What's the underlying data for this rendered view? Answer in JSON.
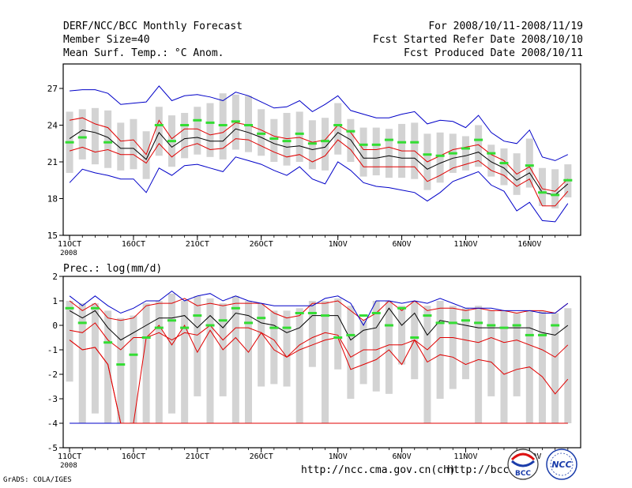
{
  "header": {
    "title": "DERF/NCC/BCC Monthly Forecast",
    "member_size": "Member Size=40",
    "variable": "Mean Surf. Temp.: °C Anom.",
    "period": "For 2008/10/11-2008/11/19",
    "started": "Fcst Started Refer Date 2008/10/10",
    "produced": "Fcst Produced Date 2008/10/11"
  },
  "footer": {
    "grads": "GrADS: COLA/IGES",
    "url1": "http://ncc.cma.gov.cn(ch)",
    "url2": "http://bcc.c",
    "logo1_text": "BCC",
    "logo2_text": "NCC"
  },
  "colors": {
    "mean": "#000000",
    "spread": "#e00000",
    "envelope": "#0000c8",
    "median": "#33dd33",
    "box": "#d3d3d3"
  },
  "chart_data": [
    {
      "type": "line",
      "title": "Mean Surf. Temp.: °C Anom.",
      "ylim": [
        15,
        29
      ],
      "yticks": [
        15,
        18,
        21,
        24,
        27
      ],
      "xlim": [
        0.5,
        41
      ],
      "xtick_labels": [
        {
          "day": 1,
          "label": "11OCT"
        },
        {
          "day": 6,
          "label": "16OCT"
        },
        {
          "day": 11,
          "label": "21OCT"
        },
        {
          "day": 16,
          "label": "26OCT"
        },
        {
          "day": 22,
          "label": "1NOV"
        },
        {
          "day": 27,
          "label": "6NOV"
        },
        {
          "day": 32,
          "label": "11NOV"
        },
        {
          "day": 37,
          "label": "16NOV"
        }
      ],
      "year_label": "2008",
      "days": [
        1,
        2,
        3,
        4,
        5,
        6,
        7,
        8,
        9,
        10,
        11,
        12,
        13,
        14,
        15,
        16,
        17,
        18,
        19,
        20,
        21,
        22,
        23,
        24,
        25,
        26,
        27,
        28,
        29,
        30,
        31,
        32,
        33,
        34,
        35,
        36,
        37,
        38,
        39,
        40
      ],
      "series": [
        {
          "name": "ensemble mean",
          "values": [
            22.9,
            23.6,
            23.4,
            23.0,
            22.1,
            22.1,
            21.2,
            23.4,
            22.2,
            22.9,
            23.0,
            22.7,
            22.7,
            23.7,
            23.4,
            23.0,
            22.5,
            22.2,
            22.3,
            22.0,
            22.2,
            23.4,
            22.8,
            21.3,
            21.3,
            21.5,
            21.3,
            21.3,
            20.4,
            20.9,
            21.3,
            21.5,
            21.8,
            21.0,
            20.5,
            19.5,
            20.1,
            18.5,
            18.3,
            19.2
          ]
        },
        {
          "name": "mean + sd",
          "values": [
            24.4,
            24.6,
            24.1,
            23.8,
            22.7,
            22.8,
            21.6,
            24.4,
            22.9,
            23.7,
            23.7,
            23.2,
            23.4,
            24.2,
            24.0,
            23.6,
            23.1,
            22.9,
            23.0,
            22.6,
            22.8,
            24.0,
            23.4,
            22.0,
            22.0,
            22.2,
            21.9,
            21.9,
            21.0,
            21.5,
            22.0,
            22.2,
            22.4,
            21.6,
            21.1,
            20.0,
            20.6,
            18.8,
            18.6,
            19.6
          ]
        },
        {
          "name": "mean - sd",
          "values": [
            21.9,
            22.2,
            21.8,
            22.0,
            21.6,
            21.6,
            20.9,
            22.5,
            21.4,
            22.2,
            22.5,
            22.0,
            22.1,
            22.9,
            22.8,
            22.3,
            21.8,
            21.4,
            21.6,
            21.0,
            21.5,
            22.8,
            22.0,
            20.6,
            20.6,
            20.6,
            20.6,
            20.6,
            19.4,
            19.9,
            20.5,
            20.8,
            21.1,
            20.3,
            19.9,
            19.0,
            19.6,
            17.4,
            17.4,
            18.6
          ]
        },
        {
          "name": "upper envelope",
          "values": [
            26.8,
            26.9,
            26.9,
            26.6,
            25.7,
            25.8,
            25.9,
            27.2,
            26.0,
            26.4,
            26.5,
            26.3,
            26.0,
            26.7,
            26.4,
            25.9,
            25.4,
            25.5,
            26.0,
            25.1,
            25.7,
            26.4,
            25.2,
            24.9,
            24.6,
            24.6,
            24.9,
            25.1,
            24.1,
            24.4,
            24.3,
            23.8,
            24.8,
            23.4,
            22.7,
            22.5,
            23.6,
            21.4,
            21.1,
            21.6
          ]
        },
        {
          "name": "lower envelope",
          "values": [
            19.3,
            20.4,
            20.1,
            19.9,
            19.6,
            19.6,
            18.5,
            20.5,
            19.9,
            20.7,
            20.8,
            20.5,
            20.2,
            21.4,
            21.1,
            20.8,
            20.3,
            19.9,
            20.6,
            19.6,
            19.2,
            21.0,
            20.3,
            19.3,
            19.0,
            18.9,
            18.7,
            18.5,
            17.8,
            18.5,
            19.4,
            19.8,
            20.2,
            19.1,
            18.6,
            17.0,
            17.7,
            16.2,
            16.1,
            17.6
          ]
        }
      ],
      "box_low": [
        20.1,
        21.2,
        20.8,
        20.5,
        20.3,
        20.4,
        19.6,
        21.5,
        20.6,
        21.3,
        21.6,
        21.4,
        21.2,
        22.0,
        21.8,
        21.5,
        21.0,
        20.7,
        21.0,
        20.4,
        20.3,
        21.6,
        21.0,
        19.8,
        19.9,
        19.7,
        19.7,
        19.6,
        18.7,
        19.3,
        20.1,
        20.3,
        20.6,
        19.8,
        19.1,
        18.3,
        18.9,
        17.4,
        17.2,
        18.1
      ],
      "box_high": [
        25.1,
        25.3,
        25.4,
        25.2,
        24.2,
        24.5,
        23.5,
        25.5,
        24.8,
        25.0,
        25.5,
        25.8,
        26.6,
        26.5,
        26.4,
        25.3,
        24.5,
        25.0,
        25.1,
        24.4,
        24.6,
        25.8,
        24.5,
        23.8,
        23.8,
        23.7,
        24.1,
        24.2,
        23.3,
        23.4,
        23.3,
        23.1,
        24.0,
        22.4,
        22.1,
        21.7,
        22.9,
        20.5,
        20.4,
        20.8
      ],
      "median": [
        22.6,
        23.0,
        null,
        22.6,
        null,
        null,
        null,
        24.0,
        22.7,
        24.0,
        24.4,
        24.2,
        24.0,
        24.3,
        24.0,
        23.3,
        22.9,
        22.7,
        23.3,
        22.5,
        22.7,
        24.0,
        23.5,
        22.4,
        22.4,
        22.8,
        22.6,
        22.6,
        21.6,
        21.5,
        21.7,
        22.1,
        22.8,
        21.7,
        20.9,
        null,
        20.7,
        18.5,
        18.3,
        19.5
      ]
    },
    {
      "type": "line",
      "title": "Prec.: log(mm/d)",
      "ylim": [
        -5,
        2
      ],
      "yticks": [
        -5,
        -4,
        -3,
        -2,
        -1,
        0,
        1,
        2
      ],
      "xlim": [
        0.5,
        41
      ],
      "xtick_labels": [
        {
          "day": 1,
          "label": "11OCT"
        },
        {
          "day": 6,
          "label": "16OCT"
        },
        {
          "day": 11,
          "label": "21OCT"
        },
        {
          "day": 16,
          "label": "26OCT"
        },
        {
          "day": 22,
          "label": "1NOV"
        },
        {
          "day": 27,
          "label": "6NOV"
        },
        {
          "day": 32,
          "label": "11NOV"
        },
        {
          "day": 37,
          "label": "16NOV"
        }
      ],
      "year_label": "2008",
      "days": [
        1,
        2,
        3,
        4,
        5,
        6,
        7,
        8,
        9,
        10,
        11,
        12,
        13,
        14,
        15,
        16,
        17,
        18,
        19,
        20,
        21,
        22,
        23,
        24,
        25,
        26,
        27,
        28,
        29,
        30,
        31,
        32,
        33,
        34,
        35,
        36,
        37,
        38,
        39,
        40
      ],
      "series": [
        {
          "name": "ensemble mean",
          "values": [
            0.6,
            0.3,
            0.6,
            -0.1,
            -0.6,
            -0.3,
            0.0,
            0.3,
            0.3,
            0.4,
            -0.1,
            0.4,
            -0.1,
            0.5,
            0.4,
            0.1,
            0.0,
            -0.3,
            -0.1,
            0.4,
            0.4,
            0.4,
            -0.6,
            -0.2,
            -0.1,
            0.7,
            0.0,
            0.5,
            -0.4,
            0.2,
            0.1,
            0.0,
            -0.1,
            -0.1,
            -0.1,
            -0.1,
            -0.1,
            -0.3,
            -0.4,
            0.0
          ]
        },
        {
          "name": "mean + sd",
          "values": [
            1.0,
            0.6,
            0.9,
            0.3,
            0.2,
            0.3,
            0.8,
            0.9,
            0.9,
            1.1,
            0.8,
            0.9,
            0.8,
            0.9,
            0.9,
            0.9,
            0.5,
            0.3,
            0.4,
            0.9,
            0.9,
            1.0,
            0.6,
            0.2,
            0.5,
            1.0,
            0.6,
            1.0,
            0.6,
            0.7,
            0.7,
            0.6,
            0.7,
            0.6,
            0.6,
            0.5,
            0.6,
            0.6,
            0.5,
            0.9
          ]
        },
        {
          "name": "mean - sd",
          "values": [
            -0.2,
            -0.3,
            0.1,
            -0.6,
            -1.0,
            -0.5,
            -0.5,
            -0.3,
            -0.6,
            -0.3,
            -0.4,
            0.0,
            -0.6,
            -0.1,
            -0.1,
            -0.3,
            -0.6,
            -1.3,
            -0.8,
            -0.5,
            -0.3,
            -0.4,
            -1.3,
            -1.0,
            -1.0,
            -0.8,
            -0.8,
            -0.6,
            -1.0,
            -0.5,
            -0.5,
            -0.6,
            -0.7,
            -0.5,
            -0.7,
            -0.6,
            -0.8,
            -1.0,
            -1.3,
            -0.8
          ]
        },
        {
          "name": "upper envelope",
          "values": [
            1.2,
            0.8,
            1.2,
            0.8,
            0.5,
            0.7,
            1.0,
            1.0,
            1.4,
            1.0,
            1.2,
            1.3,
            1.0,
            1.2,
            1.0,
            0.9,
            0.8,
            0.8,
            0.8,
            0.8,
            1.1,
            1.2,
            0.9,
            0.0,
            1.0,
            1.0,
            0.9,
            1.0,
            0.9,
            1.1,
            0.9,
            0.7,
            0.7,
            0.7,
            0.6,
            0.6,
            0.6,
            0.5,
            0.5,
            0.9
          ]
        },
        {
          "name": "lower envelope",
          "values": [
            -4,
            -4,
            -4,
            -4,
            -4,
            -4,
            -4,
            -4,
            -4,
            -4,
            -4,
            -4,
            -4,
            -4,
            -4,
            -4,
            -4,
            -4,
            -4,
            -4,
            -4,
            -4,
            -4,
            -4,
            -4,
            -4,
            -4,
            -4,
            -4,
            -4,
            -4,
            -4,
            -4,
            -4,
            -4,
            -4,
            -4,
            -4,
            -4,
            -4
          ]
        },
        {
          "name": "ensemble minimum",
          "values": [
            -0.6,
            -1.0,
            -0.9,
            -1.6,
            -4.0,
            -4.0,
            -4.0,
            -4.0,
            -4.0,
            -4.0,
            -4.0,
            -4.0,
            -4.0,
            -4.0,
            -4.0,
            -4.0,
            -4.0,
            -4.0,
            -4.0,
            -4.0,
            -4.0,
            -4.0,
            -4.0,
            -4.0,
            -4.0,
            -4.0,
            -4.0,
            -4.0,
            -4.0,
            -4.0,
            -4.0,
            -4.0,
            -4.0,
            -4.0,
            -4.0,
            -4.0,
            -4.0,
            -4.0,
            -4.0,
            -4.0
          ]
        },
        {
          "name": "lower percentile",
          "values": [
            -0.6,
            -1.0,
            -0.9,
            -1.6,
            -4.0,
            -4.0,
            -0.5,
            0.0,
            -0.8,
            0.0,
            -1.1,
            -0.2,
            -1.0,
            -0.5,
            -1.1,
            -0.3,
            -1.0,
            -1.3,
            -1.0,
            -0.8,
            -0.6,
            -0.5,
            -1.8,
            -1.6,
            -1.4,
            -1.0,
            -1.6,
            -0.6,
            -1.5,
            -1.2,
            -1.3,
            -1.6,
            -1.4,
            -1.5,
            -2.0,
            -1.8,
            -1.7,
            -2.1,
            -2.8,
            -2.2
          ]
        }
      ],
      "box_low": [
        -2.3,
        -4.0,
        -3.6,
        -4.0,
        -4.0,
        -4.0,
        -4.0,
        -4.0,
        -3.6,
        -4.0,
        -2.9,
        -4.0,
        -2.9,
        -4.0,
        -4.0,
        -2.5,
        -2.4,
        -2.5,
        -4.0,
        -1.7,
        -4.0,
        -1.8,
        -3.0,
        -2.4,
        -2.7,
        -2.8,
        -1.6,
        -2.2,
        -4.0,
        -3.0,
        -2.6,
        -2.2,
        -4.0,
        -2.9,
        -4.0,
        -2.9,
        -4.0,
        -4.0,
        -4.0,
        -4.0
      ],
      "box_high": [
        1.0,
        0.9,
        0.9,
        0.6,
        0.3,
        0.4,
        0.9,
        1.0,
        1.3,
        1.0,
        1.2,
        1.1,
        0.9,
        1.2,
        1.0,
        0.9,
        0.6,
        0.6,
        0.7,
        1.0,
        1.0,
        1.1,
        0.8,
        0.2,
        1.0,
        1.0,
        0.8,
        1.0,
        0.8,
        1.0,
        0.8,
        0.7,
        0.8,
        0.6,
        0.6,
        0.5,
        0.6,
        0.6,
        0.5,
        0.7
      ],
      "median": [
        0.7,
        0.1,
        0.7,
        -0.7,
        -1.6,
        -1.2,
        -0.5,
        -0.1,
        0.2,
        -0.1,
        0.4,
        0.0,
        0.2,
        0.7,
        0.1,
        0.3,
        -0.1,
        -0.1,
        0.5,
        0.5,
        0.4,
        -0.5,
        -0.4,
        0.4,
        0.5,
        0.0,
        0.7,
        -0.5,
        0.4,
        0.1,
        0.1,
        0.2,
        0.1,
        0.0,
        -0.1,
        0.0,
        -0.4,
        -0.4,
        0.0,
        null
      ]
    }
  ]
}
